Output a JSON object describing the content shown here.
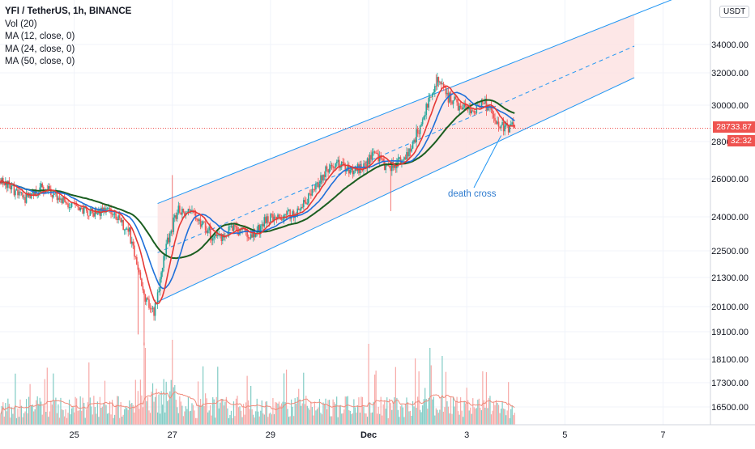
{
  "header": {
    "symbol_line": "YFI / TetherUS, 1h, BINANCE",
    "indicators": [
      "Vol (20)",
      "MA (12, close, 0)",
      "MA (24, close, 0)",
      "MA (50, close, 0)"
    ]
  },
  "currency_button": "USDT",
  "price_label": "28733.87",
  "countdown_label": "32:32",
  "annotation": "death cross",
  "colors": {
    "bull": "#26a69a",
    "bear": "#ef5350",
    "ma12": "#e53935",
    "ma24": "#1e6fd9",
    "ma50": "#1b5e20",
    "channel_fill": "#fde3e3",
    "channel_line": "#2196f3",
    "vol_bull": "#80cbc4",
    "vol_bear": "#f7a9a7",
    "vol_ma": "#f08a7a"
  },
  "chart_data": {
    "type": "candlestick",
    "y_axis_ticks": [
      34000,
      32000,
      30000,
      28000,
      26000,
      24000,
      22500,
      21300,
      20100,
      19100,
      18100,
      17300,
      16500
    ],
    "y_axis_tick_labels": [
      "34000.00",
      "32000.00",
      "30000.00",
      "28000.00",
      "26000.00",
      "24000.00",
      "22500.00",
      "21300.00",
      "20100.00",
      "19100.00",
      "18100.00",
      "17300.00",
      "16500.00"
    ],
    "x_axis_labels": [
      "25",
      "27",
      "29",
      "Dec",
      "3",
      "5",
      "7"
    ],
    "current_price": 28733.87,
    "price_path_keypoints": [
      [
        0,
        25900
      ],
      [
        20,
        25000
      ],
      [
        35,
        25600
      ],
      [
        50,
        24800
      ],
      [
        70,
        24300
      ],
      [
        90,
        24200
      ],
      [
        105,
        23300
      ],
      [
        115,
        20800
      ],
      [
        125,
        19800
      ],
      [
        135,
        22700
      ],
      [
        145,
        24400
      ],
      [
        160,
        24000
      ],
      [
        175,
        23000
      ],
      [
        190,
        23500
      ],
      [
        205,
        23200
      ],
      [
        220,
        24000
      ],
      [
        240,
        24200
      ],
      [
        255,
        25300
      ],
      [
        265,
        26500
      ],
      [
        275,
        26800
      ],
      [
        285,
        26500
      ],
      [
        295,
        26600
      ],
      [
        305,
        27400
      ],
      [
        315,
        26500
      ],
      [
        325,
        26900
      ],
      [
        335,
        27700
      ],
      [
        345,
        29400
      ],
      [
        355,
        31500
      ],
      [
        365,
        30500
      ],
      [
        375,
        29900
      ],
      [
        385,
        29800
      ],
      [
        395,
        30100
      ],
      [
        405,
        29100
      ],
      [
        412,
        28750
      ]
    ],
    "channel": {
      "upper_start": 24700,
      "upper_end": 36000,
      "lower_start": 20300,
      "lower_end": 31700
    },
    "indicators": [
      "Vol (20)",
      "MA (12, close, 0)",
      "MA (24, close, 0)",
      "MA (50, close, 0)"
    ]
  }
}
